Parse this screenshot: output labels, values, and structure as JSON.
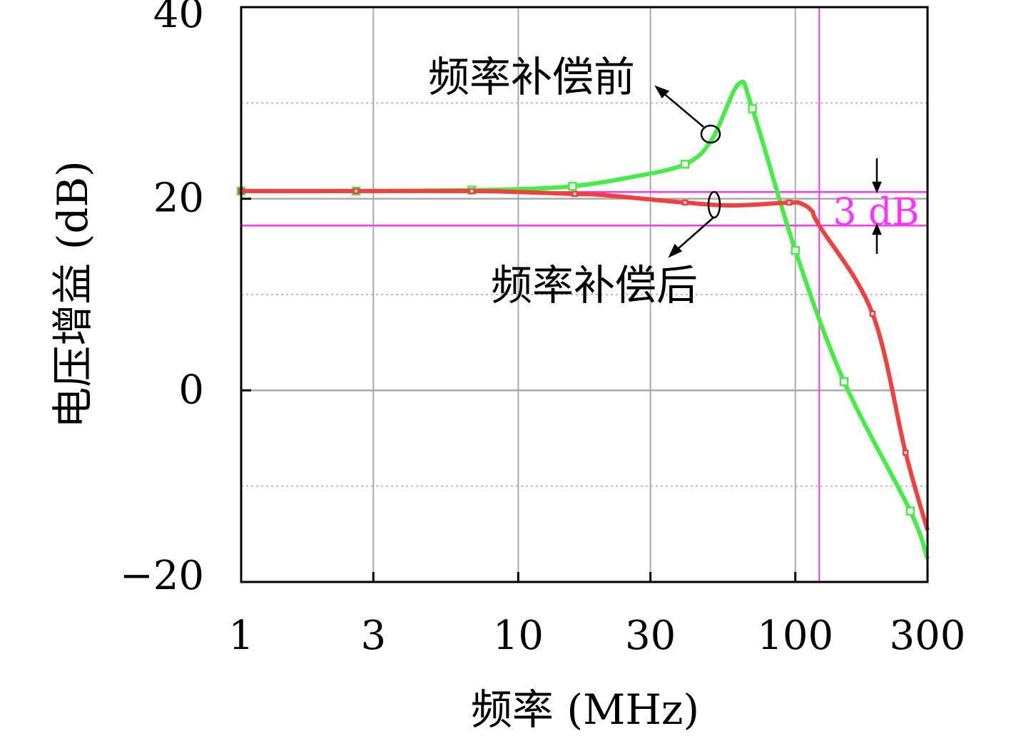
{
  "chart_data": {
    "type": "line",
    "title": "",
    "xlabel": "频率 (MHz)",
    "ylabel": "电压增益 (dB)",
    "xscale": "log",
    "xlim": [
      1,
      300
    ],
    "ylim": [
      -20,
      40
    ],
    "xticks": [
      1,
      3,
      10,
      30,
      100,
      300
    ],
    "xtick_labels": [
      "1",
      "3",
      "10",
      "30",
      "100",
      "300"
    ],
    "yticks": [
      -20,
      0,
      20,
      40
    ],
    "ytick_labels": [
      "−20",
      "0",
      "20",
      "40"
    ],
    "grid": true,
    "series": [
      {
        "name": "频率补偿前",
        "color": "#44ee44",
        "x": [
          1,
          2.6,
          6.8,
          10,
          15.7,
          25,
          40,
          50,
          62.5,
          70,
          100,
          150,
          260,
          300
        ],
        "y": [
          20.8,
          20.8,
          20.9,
          21.0,
          21.3,
          22.2,
          23.6,
          26.2,
          32.0,
          29.4,
          14.6,
          0.9,
          -12.6,
          -17.6
        ]
      },
      {
        "name": "频率补偿后",
        "color": "#f04040",
        "x": [
          1,
          2.6,
          6.8,
          10,
          16,
          20,
          40,
          60,
          95,
          105,
          115,
          122,
          190,
          250,
          300
        ],
        "y": [
          20.8,
          20.8,
          20.8,
          20.7,
          20.5,
          20.4,
          19.6,
          19.3,
          19.6,
          19.5,
          18.7,
          17.2,
          8.0,
          -6.5,
          -14.6
        ]
      }
    ],
    "reference_lines": {
      "color": "#ff33ff",
      "horizontal_db": [
        20.7,
        17.2
      ],
      "vertical_mhz": 122
    },
    "annotations": {
      "band_label": "3 dB",
      "before_label": "频率补偿前",
      "after_label": "频率补偿后"
    }
  }
}
